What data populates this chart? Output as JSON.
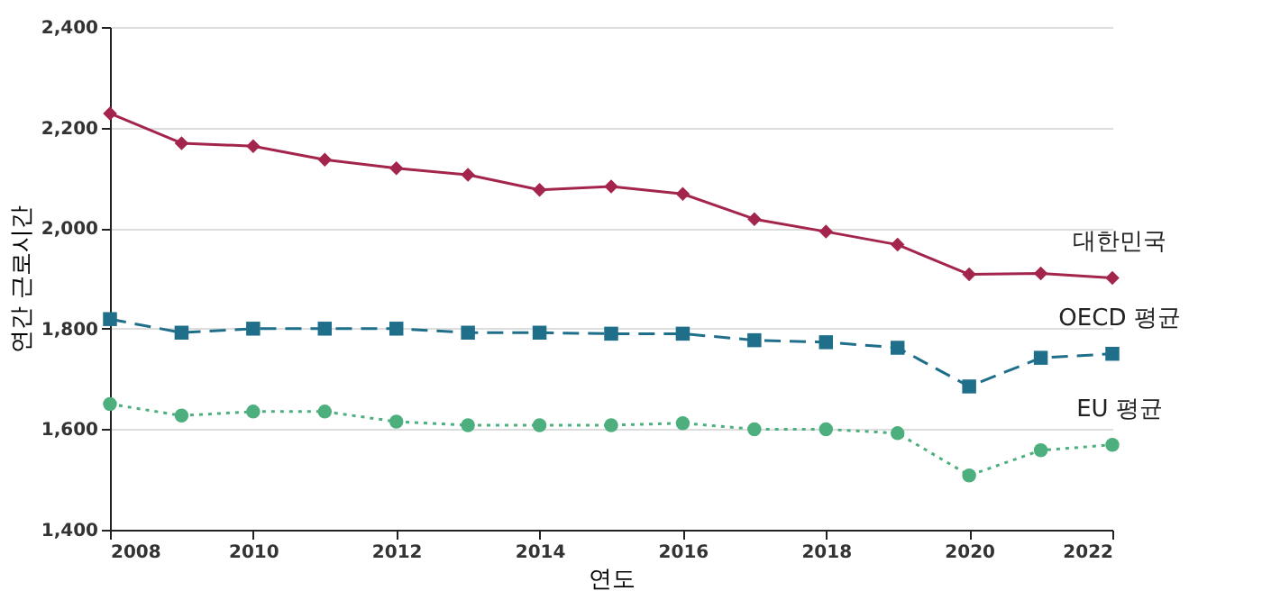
{
  "chart_data": {
    "type": "line",
    "xlabel": "연도",
    "ylabel": "연간 근로시간",
    "x": [
      2008,
      2009,
      2010,
      2011,
      2012,
      2013,
      2014,
      2015,
      2016,
      2017,
      2018,
      2019,
      2020,
      2021,
      2022
    ],
    "series": [
      {
        "name": "대한민국",
        "color": "#a3254c",
        "marker": "diamond",
        "line_style": "solid",
        "values": [
          2228,
          2169,
          2163,
          2136,
          2119,
          2106,
          2076,
          2083,
          2068,
          2018,
          1993,
          1967,
          1908,
          1910,
          1901
        ]
      },
      {
        "name": "OECD 평균",
        "color": "#1f6f8b",
        "marker": "square",
        "line_style": "dashed",
        "values": [
          1819,
          1792,
          1800,
          1800,
          1800,
          1792,
          1792,
          1790,
          1790,
          1777,
          1773,
          1762,
          1685,
          1742,
          1750
        ]
      },
      {
        "name": "EU 평균",
        "color": "#4caf7d",
        "marker": "circle",
        "line_style": "dotted",
        "values": [
          1650,
          1627,
          1635,
          1635,
          1615,
          1608,
          1608,
          1608,
          1612,
          1600,
          1600,
          1592,
          1508,
          1558,
          1569
        ]
      }
    ],
    "xlim": [
      2008,
      2022
    ],
    "xticks": [
      2008,
      2010,
      2012,
      2014,
      2016,
      2018,
      2020,
      2022
    ],
    "ylim": [
      1400,
      2400
    ],
    "yticks": [
      {
        "value": 1400,
        "label": "1,400"
      },
      {
        "value": 1600,
        "label": "1,600"
      },
      {
        "value": 1800,
        "label": "1,800"
      },
      {
        "value": 2000,
        "label": "2,000"
      },
      {
        "value": 2200,
        "label": "2,200"
      },
      {
        "value": 2400,
        "label": "2,400"
      }
    ],
    "grid": "y"
  }
}
